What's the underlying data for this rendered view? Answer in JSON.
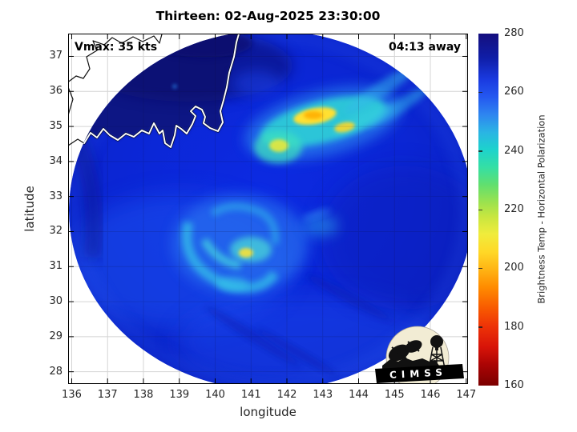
{
  "title": "Thirteen: 02-Aug-2025 23:30:00",
  "overlays": {
    "vmax_label": "Vmax: 35 kts",
    "countdown_label": "04:13 away"
  },
  "axes": {
    "xlabel": "longitude",
    "ylabel": "latitude",
    "xtick_labels": [
      "136",
      "137",
      "138",
      "139",
      "140",
      "141",
      "142",
      "143",
      "144",
      "145",
      "146",
      "147"
    ],
    "ytick_labels": [
      "37",
      "36",
      "35",
      "34",
      "33",
      "32",
      "31",
      "30",
      "29",
      "28"
    ]
  },
  "colorbar": {
    "label": "Brightness Temp - Horizontal Polarization",
    "tick_labels": [
      "280",
      "260",
      "240",
      "220",
      "200",
      "180",
      "160"
    ]
  },
  "logo": {
    "text": "CIMSS"
  },
  "colors": {
    "ocean_blue": "#0b28dc",
    "land_navy": "#0a1384",
    "convection_yellow": "#ffe030",
    "convection_cyan": "#2fd6d6",
    "grid_outside": "#d4d4d4",
    "tick_text": "#262626",
    "colorbar_top_navy": "#150f7e",
    "colorbar_bottom_red": "#7b0000"
  },
  "chart_data": {
    "type": "heatmap",
    "title": "Thirteen: 02-Aug-2025 23:30:00",
    "storm_name": "Thirteen",
    "timestamp": "02-Aug-2025 23:30:00",
    "vmax_kts": 35,
    "pass_time_offset": "04:13 away",
    "xlabel": "longitude",
    "ylabel": "latitude",
    "xlim": [
      135.9,
      147.05
    ],
    "ylim": [
      27.65,
      37.65
    ],
    "xticks": [
      136,
      137,
      138,
      139,
      140,
      141,
      142,
      143,
      144,
      145,
      146,
      147
    ],
    "yticks": [
      37,
      36,
      35,
      34,
      33,
      32,
      31,
      30,
      29,
      28
    ],
    "grid": true,
    "colorbar": {
      "label": "Brightness Temp - Horizontal Polarization",
      "min": 160,
      "max": 280,
      "ticks": [
        280,
        260,
        240,
        220,
        200,
        180,
        160
      ],
      "colormap_low_to_high": [
        "dark red 160K",
        "red 175K",
        "orange 195K",
        "yellow 207K",
        "yellow-green 218K",
        "green 228K",
        "cyan 240K",
        "sky blue 250K",
        "royal blue 260K",
        "navy 280K"
      ]
    },
    "swath": {
      "shape": "circular microwave swath clipped by axes",
      "center_lon": 141.55,
      "center_lat": 32.6,
      "radius_lon_deg": 5.6,
      "radius_lat_deg": 5.1,
      "background_ocean_tb_K": 265,
      "land_tb_K": 278,
      "land_region": "Honshu, Japan in upper-left with white coastline inside swath and thin black coastline outside swath"
    },
    "features": [
      {
        "name": "northern-convective-band",
        "lon_range": [
          141.5,
          144.5
        ],
        "lat_range": [
          34.3,
          35.8
        ],
        "min_tb_K": 203,
        "desc": "bright cyan band with yellow/orange cores near 142.8E 35.3N, streaks extending northeast"
      },
      {
        "name": "northern-band-west-cell",
        "lon": 141.8,
        "lat": 34.5,
        "min_tb_K": 210
      },
      {
        "name": "northern-band-east-cell",
        "lon": 143.6,
        "lat": 34.9,
        "min_tb_K": 208
      },
      {
        "name": "central-convection-swirl",
        "lon_range": [
          140.0,
          141.8
        ],
        "lat_range": [
          30.8,
          32.5
        ],
        "min_tb_K": 210,
        "desc": "curved cyan rainbands around storm center with small yellow core near 140.9E 31.4N"
      },
      {
        "name": "ocean-background",
        "tb_K": 265,
        "desc": "uniform royal blue with subtle darker scan mottling, lighter blue toward south-west"
      }
    ]
  }
}
